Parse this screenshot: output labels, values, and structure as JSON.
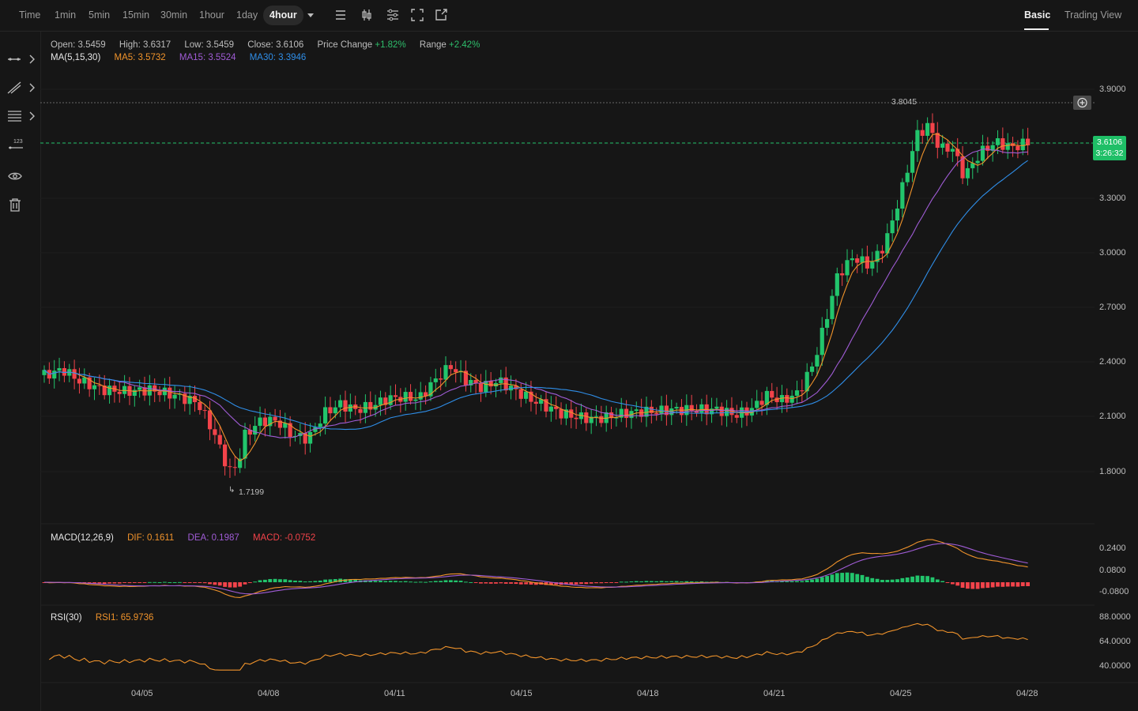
{
  "toolbar": {
    "timeframes": [
      "Time",
      "1min",
      "5min",
      "15min",
      "30min",
      "1hour",
      "1day",
      "4hour"
    ],
    "active_timeframe": "4hour",
    "views": {
      "basic": "Basic",
      "trading_view": "Trading View"
    }
  },
  "ohlc": {
    "open_label": "Open:",
    "open": "3.5459",
    "high_label": "High:",
    "high": "3.6317",
    "low_label": "Low:",
    "low": "3.5459",
    "close_label": "Close:",
    "close": "3.6106",
    "change_label": "Price Change",
    "change": "+1.82%",
    "range_label": "Range",
    "range": "+2.42%"
  },
  "ma": {
    "label": "MA(5,15,30)",
    "ma5": "MA5: 3.5732",
    "ma15": "MA15: 3.5524",
    "ma30": "MA30: 3.3946"
  },
  "price_axis": [
    "3.9000",
    "3.3000",
    "3.0000",
    "2.7000",
    "2.4000",
    "2.1000",
    "1.8000"
  ],
  "annotations": {
    "high": "3.8045",
    "low": "1.7199"
  },
  "current_price": {
    "price": "3.6106",
    "countdown": "3:26:32"
  },
  "macd": {
    "label": "MACD(12,26,9)",
    "dif": "DIF: 0.1611",
    "dea": "DEA: 0.1987",
    "macd": "MACD: -0.0752",
    "axis": [
      "0.2400",
      "0.0800",
      "-0.0800"
    ]
  },
  "rsi": {
    "label": "RSI(30)",
    "rsi1": "RSI1: 65.9736",
    "axis": [
      "88.0000",
      "64.0000",
      "40.0000"
    ]
  },
  "x_axis": [
    "04/05",
    "04/08",
    "04/11",
    "04/15",
    "04/18",
    "04/21",
    "04/25",
    "04/28"
  ],
  "colors": {
    "up": "#22c56c",
    "down": "#f2434a",
    "ma5": "#f0932b",
    "ma15": "#a05cd6",
    "ma30": "#2f8ee8",
    "dif": "#f0932b",
    "dea": "#a05cd6",
    "rsi": "#f0932b"
  }
}
